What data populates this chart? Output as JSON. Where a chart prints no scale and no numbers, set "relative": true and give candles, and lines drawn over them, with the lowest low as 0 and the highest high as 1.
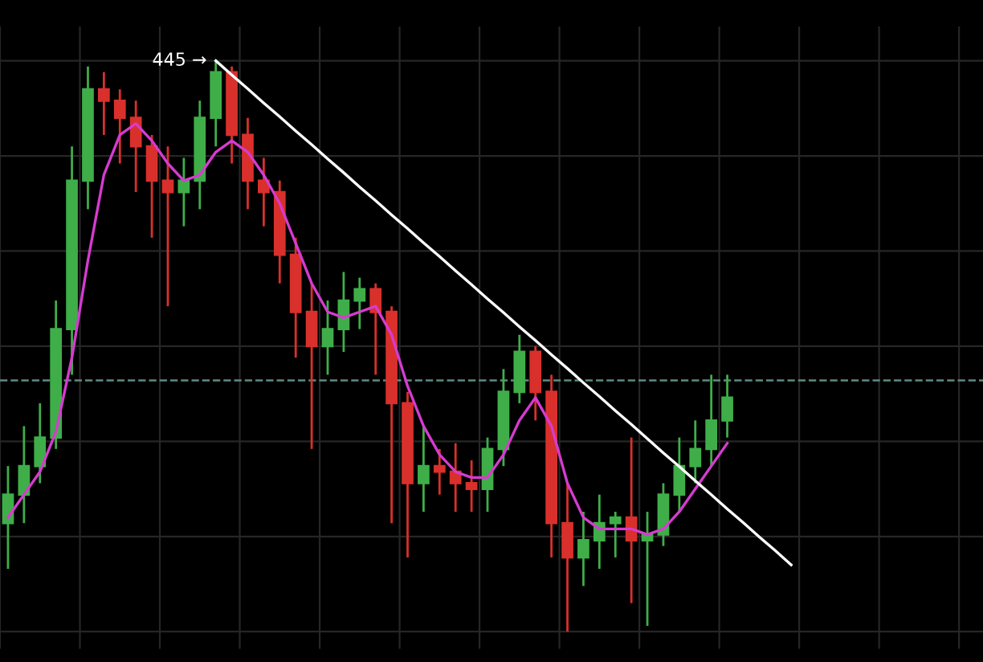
{
  "chart_data": {
    "type": "candlestick",
    "relative": true,
    "grid": true,
    "categories": [
      null,
      null,
      null,
      null,
      null,
      null,
      null,
      null,
      null,
      null,
      null,
      null,
      null,
      null,
      null,
      null,
      null,
      null,
      null,
      null,
      null,
      null,
      null,
      null,
      null,
      null,
      null,
      null,
      null,
      null,
      null,
      null,
      null,
      null,
      null,
      null,
      null,
      null,
      null,
      null,
      null,
      null,
      null,
      null,
      null,
      null,
      null,
      null,
      null,
      null
    ],
    "ohlc": [
      [
        0.19,
        0.29,
        0.11,
        0.24
      ],
      [
        0.24,
        0.36,
        0.19,
        0.29
      ],
      [
        0.29,
        0.4,
        0.26,
        0.34
      ],
      [
        0.34,
        0.58,
        0.32,
        0.53
      ],
      [
        0.53,
        0.85,
        0.45,
        0.79
      ],
      [
        0.79,
        0.99,
        0.74,
        0.95
      ],
      [
        0.95,
        0.98,
        0.87,
        0.93
      ],
      [
        0.93,
        0.95,
        0.82,
        0.9
      ],
      [
        0.9,
        0.93,
        0.77,
        0.85
      ],
      [
        0.85,
        0.87,
        0.69,
        0.79
      ],
      [
        0.79,
        0.85,
        0.57,
        0.77
      ],
      [
        0.77,
        0.83,
        0.71,
        0.79
      ],
      [
        0.79,
        0.93,
        0.74,
        0.9
      ],
      [
        0.9,
        1.0,
        0.85,
        0.98
      ],
      [
        0.98,
        0.99,
        0.82,
        0.87
      ],
      [
        0.87,
        0.9,
        0.74,
        0.79
      ],
      [
        0.79,
        0.83,
        0.71,
        0.77
      ],
      [
        0.77,
        0.79,
        0.61,
        0.66
      ],
      [
        0.66,
        0.69,
        0.48,
        0.56
      ],
      [
        0.56,
        0.61,
        0.32,
        0.5
      ],
      [
        0.5,
        0.58,
        0.45,
        0.53
      ],
      [
        0.53,
        0.63,
        0.49,
        0.58
      ],
      [
        0.58,
        0.62,
        0.53,
        0.6
      ],
      [
        0.6,
        0.61,
        0.45,
        0.56
      ],
      [
        0.56,
        0.57,
        0.19,
        0.4
      ],
      [
        0.4,
        0.42,
        0.13,
        0.26
      ],
      [
        0.26,
        0.36,
        0.21,
        0.29
      ],
      [
        0.29,
        0.32,
        0.24,
        0.28
      ],
      [
        0.28,
        0.33,
        0.21,
        0.26
      ],
      [
        0.26,
        0.3,
        0.21,
        0.25
      ],
      [
        0.25,
        0.34,
        0.21,
        0.32
      ],
      [
        0.32,
        0.46,
        0.29,
        0.42
      ],
      [
        0.42,
        0.52,
        0.4,
        0.49
      ],
      [
        0.49,
        0.5,
        0.37,
        0.42
      ],
      [
        0.42,
        0.45,
        0.13,
        0.19
      ],
      [
        0.19,
        0.26,
        0.0,
        0.13
      ],
      [
        0.13,
        0.21,
        0.08,
        0.16
      ],
      [
        0.16,
        0.24,
        0.11,
        0.19
      ],
      [
        0.19,
        0.21,
        0.13,
        0.2
      ],
      [
        0.2,
        0.34,
        0.05,
        0.16
      ],
      [
        0.16,
        0.21,
        0.01,
        0.17
      ],
      [
        0.17,
        0.26,
        0.15,
        0.24
      ],
      [
        0.24,
        0.34,
        0.21,
        0.29
      ],
      [
        0.29,
        0.37,
        0.26,
        0.32
      ],
      [
        0.32,
        0.45,
        0.29,
        0.37
      ],
      [
        0.37,
        0.45,
        0.34,
        0.41
      ],
      null,
      null,
      null,
      null
    ],
    "colors": [
      "#3fae49",
      "#3fae49",
      "#3fae49",
      "#3fae49",
      "#3fae49",
      "#3fae49",
      "#d9302c",
      "#d9302c",
      "#d9302c",
      "#d9302c",
      "#d9302c",
      "#3fae49",
      "#3fae49",
      "#3fae49",
      "#d9302c",
      "#d9302c",
      "#d9302c",
      "#d9302c",
      "#d9302c",
      "#d9302c",
      "#3fae49",
      "#3fae49",
      "#3fae49",
      "#d9302c",
      "#d9302c",
      "#d9302c",
      "#3fae49",
      "#d9302c",
      "#d9302c",
      "#d9302c",
      "#3fae49",
      "#3fae49",
      "#3fae49",
      "#d9302c",
      "#d9302c",
      "#d9302c",
      "#3fae49",
      "#3fae49",
      "#3fae49",
      "#d9302c",
      "#3fae49",
      "#3fae49",
      "#3fae49",
      "#3fae49",
      "#3fae49",
      "#3fae49",
      null,
      null,
      null,
      null
    ],
    "series": [
      {
        "type": "line",
        "color": "#d63bd0",
        "values": [
          0.2,
          0.24,
          0.28,
          0.35,
          0.48,
          0.65,
          0.8,
          0.87,
          0.89,
          0.86,
          0.82,
          0.79,
          0.8,
          0.84,
          0.86,
          0.84,
          0.8,
          0.75,
          0.68,
          0.61,
          0.56,
          0.55,
          0.56,
          0.57,
          0.52,
          0.43,
          0.36,
          0.31,
          0.28,
          0.27,
          0.27,
          0.31,
          0.37,
          0.41,
          0.36,
          0.26,
          0.2,
          0.18,
          0.18,
          0.18,
          0.17,
          0.18,
          0.21,
          0.25,
          0.29,
          0.33,
          null,
          null,
          null,
          null
        ]
      },
      {
        "type": "line",
        "color": "#ffffff",
        "values": [
          null,
          null,
          null,
          null,
          null,
          null,
          null,
          null,
          null,
          null,
          null,
          null,
          null,
          1.0,
          0.975,
          0.951,
          0.926,
          0.902,
          0.877,
          0.853,
          0.828,
          0.804,
          0.779,
          0.755,
          0.73,
          0.706,
          0.681,
          0.657,
          0.632,
          0.608,
          0.583,
          0.559,
          0.534,
          0.51,
          0.485,
          0.461,
          0.436,
          0.412,
          0.387,
          0.363,
          0.338,
          0.313,
          0.289,
          0.264,
          0.24,
          0.215,
          0.191,
          0.166,
          0.142,
          0.117
        ]
      }
    ],
    "ref_lines": [
      {
        "axis": "y",
        "value": 0.44,
        "color": "#5f8a82",
        "line_style": "dashed"
      }
    ],
    "annotations": [
      "445 →"
    ]
  }
}
